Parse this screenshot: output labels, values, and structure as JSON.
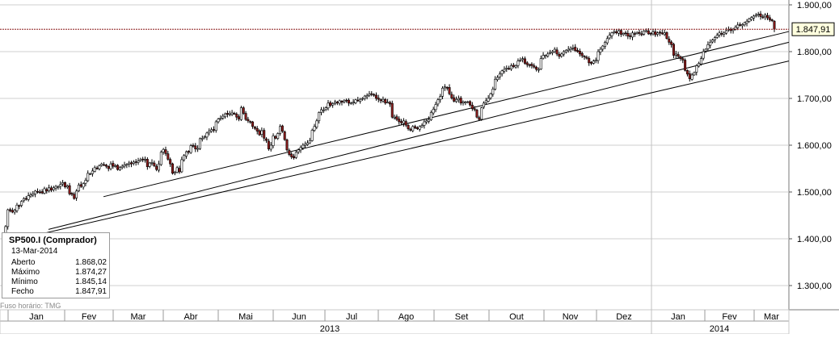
{
  "chart_data": {
    "type": "candlestick",
    "instrument": "SP500.I (Comprador)",
    "ylim": [
      1230,
      1910
    ],
    "y_ticks": [
      1300,
      1400,
      1500,
      1600,
      1700,
      1800,
      1900
    ],
    "y_tick_labels": [
      "1.300,00",
      "1.400,00",
      "1.500,00",
      "1.600,00",
      "1.700,00",
      "1.800,00",
      "1.900,00"
    ],
    "x_month_labels": [
      "Jan",
      "Fev",
      "Mar",
      "Abr",
      "Mai",
      "Jun",
      "Jul",
      "Ago",
      "Set",
      "Out",
      "Nov",
      "Dez",
      "Jan",
      "Fev",
      "Mar"
    ],
    "x_year_labels": [
      "2013",
      "2014"
    ],
    "last_price": 1847.91,
    "last_price_label": "1.847,91",
    "series_closes": [
      1409,
      1426,
      1462,
      1460,
      1457,
      1461,
      1472,
      1470,
      1480,
      1486,
      1485,
      1492,
      1494,
      1496,
      1502,
      1501,
      1500,
      1498,
      1507,
      1502,
      1509,
      1504,
      1509,
      1512,
      1511,
      1516,
      1520,
      1511,
      1513,
      1496,
      1495,
      1486,
      1502,
      1515,
      1512,
      1518,
      1525,
      1540,
      1539,
      1545,
      1552,
      1550,
      1556,
      1560,
      1558,
      1555,
      1550,
      1560,
      1555,
      1556,
      1548,
      1552,
      1555,
      1558,
      1559,
      1562,
      1560,
      1564,
      1563,
      1566,
      1569,
      1569,
      1570,
      1554,
      1562,
      1563,
      1556,
      1548,
      1560,
      1585,
      1591,
      1582,
      1570,
      1560,
      1540,
      1542,
      1552,
      1543,
      1569,
      1578,
      1586,
      1585,
      1599,
      1598,
      1592,
      1593,
      1614,
      1615,
      1618,
      1626,
      1630,
      1633,
      1632,
      1650,
      1656,
      1658,
      1662,
      1667,
      1666,
      1667,
      1669,
      1667,
      1660,
      1656,
      1680,
      1668,
      1655,
      1652,
      1650,
      1640,
      1636,
      1630,
      1622,
      1631,
      1615,
      1610,
      1592,
      1600,
      1620,
      1615,
      1625,
      1640,
      1630,
      1612,
      1590,
      1580,
      1575,
      1573,
      1585,
      1590,
      1595,
      1600,
      1602,
      1605,
      1610,
      1632,
      1640,
      1652,
      1670,
      1676,
      1675,
      1680,
      1690,
      1685,
      1689,
      1692,
      1690,
      1695,
      1692,
      1695,
      1696,
      1690,
      1690,
      1692,
      1697,
      1695,
      1698,
      1700,
      1705,
      1706,
      1709,
      1710,
      1707,
      1700,
      1698,
      1695,
      1698,
      1690,
      1692,
      1688,
      1660,
      1660,
      1655,
      1650,
      1648,
      1652,
      1643,
      1635,
      1632,
      1640,
      1637,
      1635,
      1640,
      1642,
      1650,
      1652,
      1655,
      1670,
      1677,
      1687,
      1697,
      1704,
      1722,
      1725,
      1722,
      1710,
      1701,
      1694,
      1698,
      1700,
      1690,
      1693,
      1692,
      1693,
      1686,
      1678,
      1676,
      1660,
      1655,
      1680,
      1690,
      1695,
      1700,
      1710,
      1720,
      1741,
      1745,
      1752,
      1759,
      1762,
      1765,
      1763,
      1770,
      1768,
      1770,
      1780,
      1782,
      1785,
      1775,
      1772,
      1772,
      1770,
      1767,
      1762,
      1762,
      1785,
      1792,
      1792,
      1795,
      1798,
      1800,
      1805,
      1795,
      1790,
      1795,
      1800,
      1803,
      1805,
      1807,
      1808,
      1802,
      1800,
      1795,
      1791,
      1789,
      1786,
      1776,
      1775,
      1780,
      1782,
      1800,
      1805,
      1812,
      1820,
      1828,
      1835,
      1840,
      1842,
      1840,
      1845,
      1837,
      1839,
      1839,
      1833,
      1832,
      1840,
      1838,
      1841,
      1839,
      1836,
      1844,
      1845,
      1838,
      1839,
      1842,
      1836,
      1840,
      1840,
      1838,
      1840,
      1828,
      1820,
      1815,
      1792,
      1795,
      1790,
      1785,
      1782,
      1760,
      1752,
      1742,
      1750,
      1755,
      1770,
      1775,
      1785,
      1800,
      1805,
      1815,
      1820,
      1825,
      1830,
      1835,
      1840,
      1838,
      1840,
      1845,
      1848,
      1845,
      1848,
      1852,
      1857,
      1856,
      1858,
      1862,
      1865,
      1870,
      1873,
      1876,
      1878,
      1880,
      1875,
      1873,
      1878,
      1872,
      1868,
      1866,
      1848
    ]
  },
  "info_box": {
    "title": "SP500.I (Comprador)",
    "date": "13-Mar-2014",
    "rows": [
      {
        "label": "Aberto",
        "value": "1.868,02"
      },
      {
        "label": "Máximo",
        "value": "1.874,27"
      },
      {
        "label": "Mínimo",
        "value": "1.845,14"
      },
      {
        "label": "Fecho",
        "value": "1.847,91"
      }
    ]
  },
  "timezone_note": "Fuso horário: TMG",
  "colors": {
    "up_candle": "#ffffff",
    "down_candle": "#8b1a1a",
    "wick": "#000000",
    "price_line": "#8b1a1a",
    "grid": "#cfcfcf"
  }
}
